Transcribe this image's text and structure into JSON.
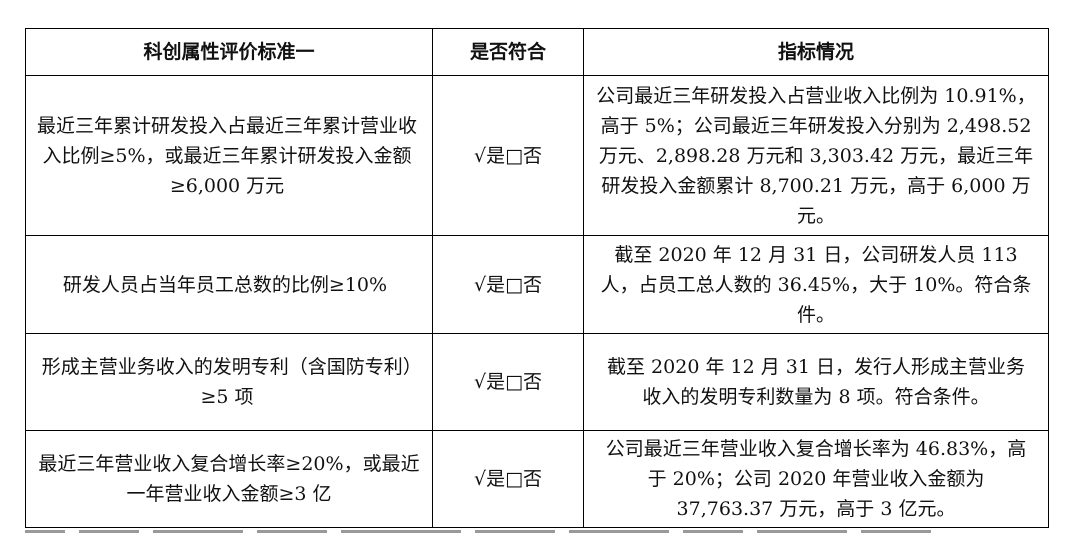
{
  "table": {
    "headers": [
      "科创属性评价标准一",
      "是否符合",
      "指标情况"
    ],
    "rows": [
      {
        "criterion": "最近三年累计研发投入占最近三年累计营业收入比例≥5%，或最近三年累计研发投入金额≥6,000 万元",
        "compliance": "√是□否",
        "details": "公司最近三年研发投入占营业收入比例为 10.91%，高于 5%；公司最近三年研发投入分别为 2,498.52 万元、2,898.28 万元和 3,303.42 万元，最近三年研发投入金额累计 8,700.21 万元，高于 6,000 万元。"
      },
      {
        "criterion": "研发人员占当年员工总数的比例≥10%",
        "compliance": "√是□否",
        "details": "截至 2020 年 12 月 31 日，公司研发人员 113 人，占员工总人数的 36.45%，大于 10%。符合条件。"
      },
      {
        "criterion": "形成主营业务收入的发明专利（含国防专利）≥5 项",
        "compliance": "√是□否",
        "details": "截至 2020 年 12 月 31 日，发行人形成主营业务收入的发明专利数量为 8 项。符合条件。"
      },
      {
        "criterion": "最近三年营业收入复合增长率≥20%，或最近一年营业收入金额≥3 亿",
        "compliance": "√是□否",
        "details": "公司最近三年营业收入复合增长率为 46.83%，高于 20%；公司 2020 年营业收入金额为 37,763.37 万元，高于 3 亿元。"
      }
    ]
  }
}
